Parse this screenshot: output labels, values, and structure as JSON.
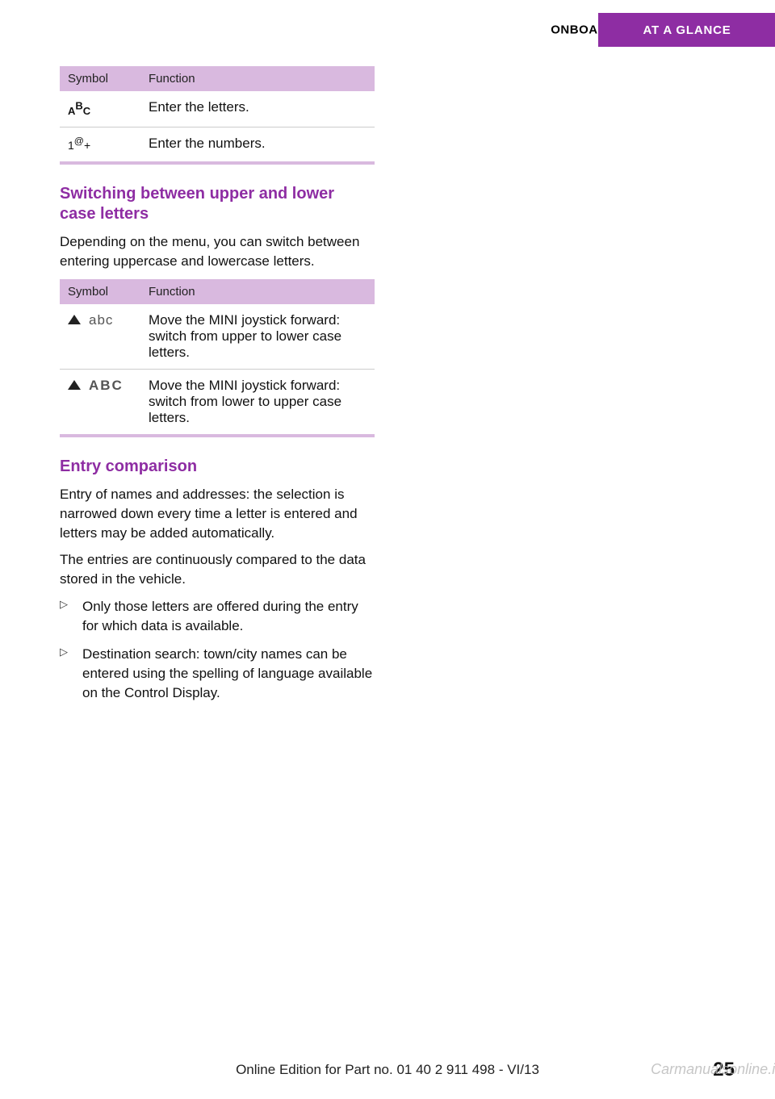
{
  "header": {
    "section": "ONBOARD MONITOR",
    "tab": "AT A GLANCE",
    "tab_bg": "#8e2da3",
    "tab_fg": "#ffffff"
  },
  "table1": {
    "head_symbol": "Symbol",
    "head_function": "Function",
    "rows": [
      {
        "sym_type": "abc",
        "func": "Enter the letters."
      },
      {
        "sym_type": "num",
        "func": "Enter the numbers."
      }
    ]
  },
  "section_switch": {
    "title": "Switching between upper and lower case letters",
    "para": "Depending on the menu, you can switch be­tween entering uppercase and lowercase let­ters."
  },
  "table2": {
    "head_symbol": "Symbol",
    "head_function": "Function",
    "rows": [
      {
        "case": "abc",
        "func": "Move the MINI joystick forward: switch from upper to lower case letters."
      },
      {
        "case": "ABC",
        "func": "Move the MINI joystick forward: switch from lower to upper case letters."
      }
    ]
  },
  "section_entry": {
    "title": "Entry comparison",
    "para1": "Entry of names and addresses: the selection is narrowed down every time a letter is entered and letters may be added automatically.",
    "para2": "The entries are continuously compared to the data stored in the vehicle.",
    "bullets": [
      "Only those letters are offered during the entry for which data is available.",
      "Destination search: town/city names can be entered using the spelling of language available on the Control Display."
    ]
  },
  "footer": {
    "edition": "Online Edition for Part no. 01 40 2 911 498 - VI/13",
    "pagenum": "25",
    "watermark": "Carmanualsonline.info"
  },
  "colors": {
    "table_head_bg": "#d9b9df",
    "heading": "#8e2da3",
    "text": "#111111"
  }
}
